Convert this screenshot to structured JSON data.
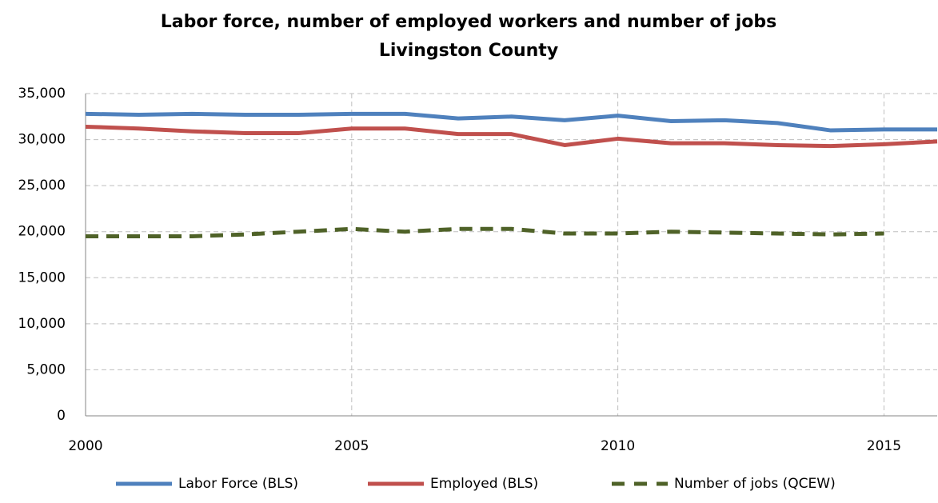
{
  "chart_data": {
    "type": "line",
    "title": "Labor force, number of employed workers and number of jobs",
    "subtitle": "Livingston County",
    "x": [
      2000,
      2001,
      2002,
      2003,
      2004,
      2005,
      2006,
      2007,
      2008,
      2009,
      2010,
      2011,
      2012,
      2013,
      2014,
      2015,
      2016
    ],
    "xlim": [
      2000,
      2016
    ],
    "xticks": [
      2000,
      2005,
      2010,
      2015
    ],
    "ylim": [
      0,
      35000
    ],
    "yticks": [
      0,
      {
        "value": 5000,
        "label": "5,000"
      },
      {
        "value": 10000,
        "label": "10,000"
      },
      {
        "value": 15000,
        "label": "15,000"
      },
      {
        "value": 20000,
        "label": "20,000"
      },
      {
        "value": 25000,
        "label": "25,000"
      },
      {
        "value": 30000,
        "label": "30,000"
      },
      {
        "value": 35000,
        "label": "35,000"
      }
    ],
    "grid": true,
    "legend": "bottom",
    "series": [
      {
        "name": "Labor Force (BLS)",
        "color": "#4f81bd",
        "dashed": false,
        "values": [
          32800,
          32700,
          32800,
          32700,
          32700,
          32800,
          32800,
          32300,
          32500,
          32100,
          32600,
          32000,
          32100,
          31800,
          31000,
          31100,
          31100
        ]
      },
      {
        "name": "Employed (BLS)",
        "color": "#c0504d",
        "dashed": false,
        "values": [
          31400,
          31200,
          30900,
          30700,
          30700,
          31200,
          31200,
          30600,
          30600,
          29400,
          30100,
          29600,
          29600,
          29400,
          29300,
          29500,
          29800
        ]
      },
      {
        "name": "Number of jobs (QCEW)",
        "color": "#4f6228",
        "dashed": true,
        "values": [
          19500,
          19500,
          19500,
          19700,
          20000,
          20300,
          20000,
          20300,
          20300,
          19800,
          19800,
          20000,
          19900,
          19800,
          19700,
          19800,
          null
        ]
      }
    ]
  }
}
